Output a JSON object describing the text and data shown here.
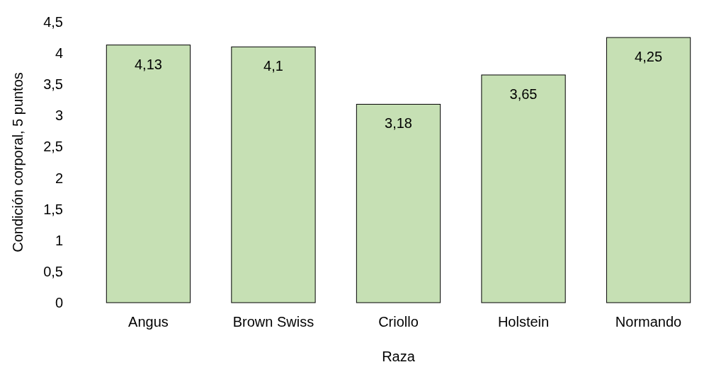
{
  "chart_data": {
    "type": "bar",
    "xlabel": "Raza",
    "ylabel": "Condición corporal, 5 puntos",
    "categories": [
      "Angus",
      "Brown Swiss",
      "Criollo",
      "Holstein",
      "Normando"
    ],
    "values": [
      4.13,
      4.1,
      3.18,
      3.65,
      4.25
    ],
    "color": "#c6e0b4",
    "ylim": [
      0,
      4.5
    ],
    "yticks": [
      {
        "value": 0,
        "label": "0"
      },
      {
        "value": 0.5,
        "label": "0,5"
      },
      {
        "value": 1,
        "label": "1"
      },
      {
        "value": 1.5,
        "label": "1,5"
      },
      {
        "value": 2,
        "label": "2"
      },
      {
        "value": 2.5,
        "label": "2,5"
      },
      {
        "value": 3,
        "label": "3"
      },
      {
        "value": 3.5,
        "label": "3,5"
      },
      {
        "value": 4,
        "label": "4"
      },
      {
        "value": 4.5,
        "label": "4,5"
      }
    ],
    "value_labels": [
      "4,13",
      "4,1",
      "3,18",
      "3,65",
      "4,25"
    ],
    "grid": false
  }
}
